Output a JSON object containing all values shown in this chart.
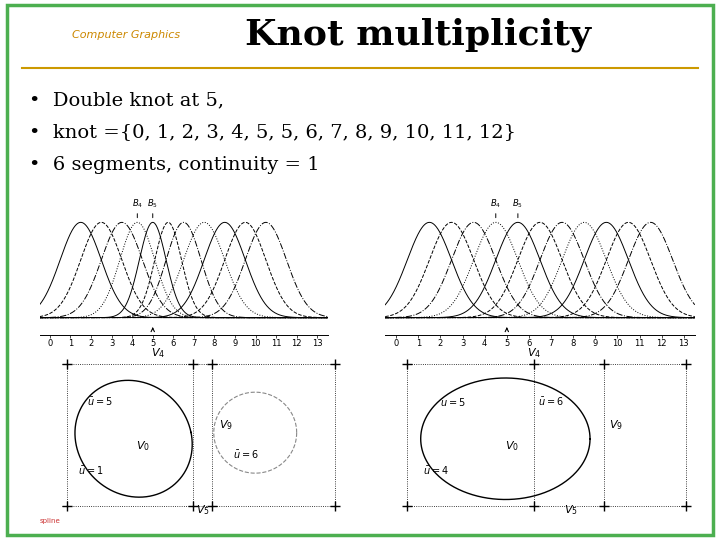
{
  "title": "Knot multiplicity",
  "subtitle": "Computer Graphics",
  "bullet1": "Double knot at 5,",
  "bullet2": "knot ={0, 1, 2, 3, 4, 5, 5, 6, 7, 8, 9, 10, 11, 12}",
  "bullet3": "6 segments, continuity = 1",
  "border_color": "#4caf50",
  "title_color": "#000000",
  "subtitle_color": "#cc8800",
  "bullet_color": "#000000",
  "bg_color": "#ffffff",
  "separator_color": "#cc9900"
}
